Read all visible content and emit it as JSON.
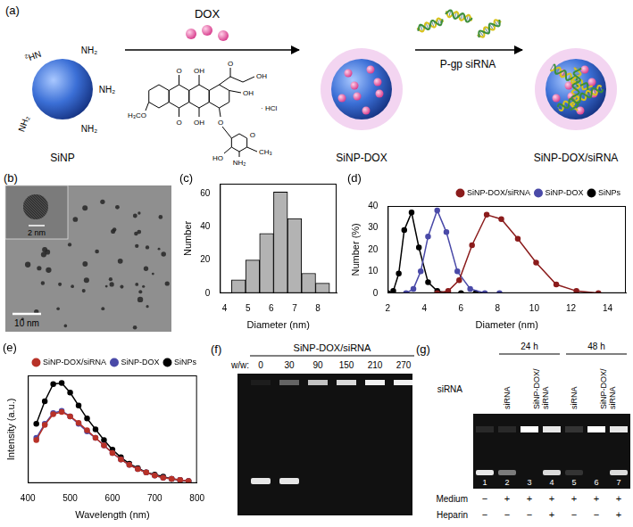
{
  "scheme": {
    "panel_label": "(a)",
    "particles": [
      "SiNP",
      "SiNP-DOX",
      "SiNP-DOX/siRNA"
    ],
    "reagents": [
      "DOX",
      "P-gp siRNA"
    ],
    "surface_group": "NH₂",
    "dox_atoms": [
      "O",
      "OH",
      "O",
      "OH",
      "OH",
      "H₃CO",
      "O",
      "OH",
      "O",
      "· HCl",
      "O",
      "CH₃",
      "HO",
      "NH₂"
    ]
  },
  "tem": {
    "panel_label": "(b)",
    "scale_bars": [
      "2 nm",
      "10 nm"
    ]
  },
  "chart_data": [
    {
      "type": "histogram",
      "panel_label": "(c)",
      "x_label": "Diameter (nm)",
      "y_label": "Number",
      "bins": [
        4.3,
        4.9,
        5.5,
        6.1,
        6.7,
        7.3,
        7.9,
        8.5
      ],
      "values": [
        8,
        20,
        36,
        61,
        45,
        12,
        6
      ],
      "color": "#b3b3b3",
      "xlim": [
        3.8,
        8.8
      ],
      "xticks": [
        4,
        5,
        6,
        7,
        8
      ],
      "ylim": [
        0,
        66
      ],
      "yticks": [
        0,
        20,
        40,
        60
      ],
      "grid": false
    },
    {
      "type": "line",
      "panel_label": "(d)",
      "x_label": "Diameter (nm)",
      "y_label": "Number (%)",
      "series": [
        {
          "name": "SiNP-DOX/siRNA",
          "color": "#8b1c1c",
          "x": [
            4.7,
            5.3,
            5.9,
            6.6,
            7.4,
            8.2,
            9.1,
            10.1,
            11.2,
            12.3,
            13.5
          ],
          "values": [
            0,
            1,
            6,
            22,
            36,
            34,
            25,
            14,
            4,
            1,
            0
          ]
        },
        {
          "name": "SiNP-DOX",
          "color": "#4a4aa8",
          "x": [
            3.0,
            3.4,
            3.8,
            4.2,
            4.7,
            5.2,
            5.8,
            6.5,
            7.3,
            8.1
          ],
          "values": [
            0,
            2,
            10,
            26,
            38,
            28,
            10,
            2,
            0,
            0
          ]
        },
        {
          "name": "SiNPs",
          "color": "#000000",
          "x": [
            2.0,
            2.3,
            2.6,
            2.9,
            3.3,
            3.7,
            4.2,
            4.7,
            5.3,
            6.0,
            6.8
          ],
          "values": [
            0,
            1,
            9,
            29,
            37,
            21,
            5,
            1,
            0,
            0,
            0
          ]
        }
      ],
      "xlim": [
        2,
        15
      ],
      "xticks": [
        2,
        4,
        6,
        8,
        10,
        12,
        14
      ],
      "ylim": [
        0,
        40
      ],
      "yticks": [
        0,
        10,
        20,
        30,
        40
      ],
      "legend": "upper right",
      "marker": "circle",
      "line_style": "solid",
      "grid": false
    },
    {
      "type": "line",
      "panel_label": "(e)",
      "x_label": "Wavelength (nm)",
      "y_label": "Intensity (a.u.)",
      "x": [
        420,
        440,
        460,
        480,
        500,
        520,
        540,
        560,
        580,
        600,
        620,
        640,
        660,
        680,
        700,
        720,
        740,
        760,
        780
      ],
      "series": [
        {
          "name": "SiNP-DOX/siRNA",
          "color": "#b83228",
          "values": [
            0.4,
            0.54,
            0.64,
            0.66,
            0.62,
            0.56,
            0.49,
            0.42,
            0.35,
            0.28,
            0.22,
            0.17,
            0.13,
            0.1,
            0.07,
            0.05,
            0.04,
            0.03,
            0.02
          ]
        },
        {
          "name": "SiNP-DOX",
          "color": "#4a4aa8",
          "values": [
            0.42,
            0.55,
            0.65,
            0.67,
            0.62,
            0.55,
            0.48,
            0.42,
            0.35,
            0.28,
            0.22,
            0.17,
            0.13,
            0.1,
            0.07,
            0.05,
            0.04,
            0.03,
            0.02
          ]
        },
        {
          "name": "SiNPs",
          "color": "#000000",
          "values": [
            0.55,
            0.76,
            0.92,
            0.93,
            0.84,
            0.72,
            0.6,
            0.5,
            0.4,
            0.31,
            0.24,
            0.18,
            0.14,
            0.1,
            0.08,
            0.06,
            0.04,
            0.03,
            0.02
          ]
        }
      ],
      "xlim": [
        400,
        800
      ],
      "xticks": [
        400,
        500,
        600,
        700,
        800
      ],
      "ylim": [
        0,
        1
      ],
      "tick_labels": "x",
      "legend": "upper right",
      "marker": "circle",
      "line_style": "solid",
      "grid": false
    }
  ],
  "gels": [
    {
      "panel_label": "(f)",
      "title": "SiNP-DOX/siRNA",
      "row_label": "w/w:",
      "lanes": [
        0,
        30,
        90,
        150,
        210,
        270
      ]
    },
    {
      "panel_label": "(g)",
      "row_label": "siRNA",
      "groups": [
        {
          "label": "24 h",
          "span": 3
        },
        {
          "label": "48 h",
          "span": 3
        }
      ],
      "headers": [
        {
          "lines": [
            "siRNA"
          ],
          "span": 1
        },
        {
          "lines": [
            "SiNP-DOX/",
            "siRNA"
          ],
          "span": 2
        },
        {
          "lines": [
            "siRNA"
          ],
          "span": 1
        },
        {
          "lines": [
            "SiNP-DOX/",
            "siRNA"
          ],
          "span": 2
        }
      ],
      "lanes": [
        1,
        2,
        3,
        4,
        5,
        6,
        7
      ],
      "conditions": [
        {
          "label": "Medium",
          "marks": [
            "−",
            "+",
            "+",
            "+",
            "+",
            "+",
            "+"
          ]
        },
        {
          "label": "Heparin",
          "marks": [
            "−",
            "−",
            "−",
            "+",
            "−",
            "−",
            "+"
          ]
        }
      ]
    }
  ]
}
